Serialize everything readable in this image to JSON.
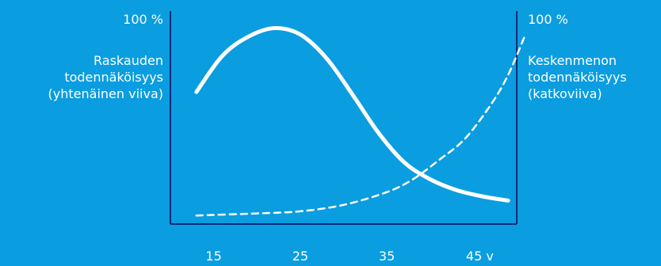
{
  "chart_data": {
    "type": "line",
    "xlabel_unit": "v",
    "x_ticks": [
      "15",
      "25",
      "35",
      "45 v"
    ],
    "x_tick_values": [
      15,
      25,
      35,
      45
    ],
    "xlim": [
      10,
      50
    ],
    "ylim": [
      0,
      100
    ],
    "left_axis": {
      "max_label": "100 %",
      "label_lines": [
        "Raskauden",
        "todennäköisyys",
        "(yhtenäinen viiva)"
      ]
    },
    "right_axis": {
      "max_label": "100 %",
      "label_lines": [
        "Keskenmenon",
        "todennäköisyys",
        "(katkoviiva)"
      ]
    },
    "series": [
      {
        "name": "Raskauden todennäköisyys",
        "style": "solid",
        "x": [
          13,
          16,
          19,
          22,
          25,
          28,
          31,
          34,
          37,
          40,
          43,
          46,
          49
        ],
        "y": [
          62,
          79,
          88,
          92,
          89,
          78,
          61,
          43,
          29,
          21,
          16,
          13,
          11
        ]
      },
      {
        "name": "Keskenmenon todennäköisyys",
        "style": "dashed",
        "x": [
          13,
          20,
          25,
          30,
          35,
          38,
          41,
          44,
          47,
          49,
          51
        ],
        "y": [
          4,
          5,
          6,
          9,
          15,
          21,
          30,
          40,
          56,
          70,
          89
        ]
      }
    ],
    "grid": false,
    "legend": "none",
    "colors": {
      "background": "#0a9de0",
      "line": "#ffffff",
      "axis": "#0b2a7a"
    }
  }
}
